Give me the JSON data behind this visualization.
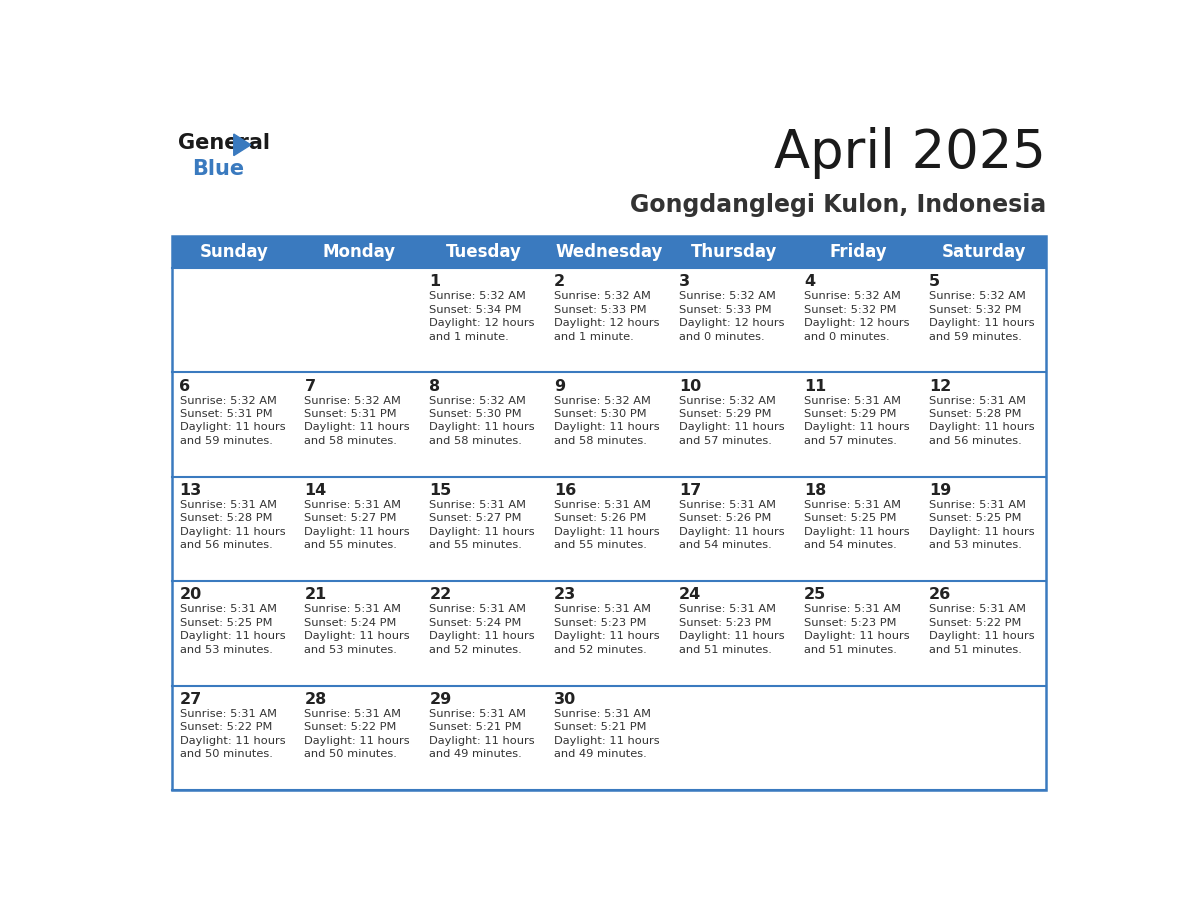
{
  "title": "April 2025",
  "subtitle": "Gongdanglegi Kulon, Indonesia",
  "header_bg_color": "#3a7abf",
  "header_text_color": "#ffffff",
  "day_names": [
    "Sunday",
    "Monday",
    "Tuesday",
    "Wednesday",
    "Thursday",
    "Friday",
    "Saturday"
  ],
  "bg_color": "#ffffff",
  "row_bg_white": "#ffffff",
  "row_bg_gray": "#f0f3f7",
  "row_line_color": "#3a7abf",
  "text_color": "#333333",
  "day_num_color": "#222222",
  "calendar": [
    [
      {
        "day": "",
        "sunrise": "",
        "sunset": "",
        "daylight": ""
      },
      {
        "day": "",
        "sunrise": "",
        "sunset": "",
        "daylight": ""
      },
      {
        "day": "1",
        "sunrise": "5:32 AM",
        "sunset": "5:34 PM",
        "daylight": "12 hours and 1 minute."
      },
      {
        "day": "2",
        "sunrise": "5:32 AM",
        "sunset": "5:33 PM",
        "daylight": "12 hours and 1 minute."
      },
      {
        "day": "3",
        "sunrise": "5:32 AM",
        "sunset": "5:33 PM",
        "daylight": "12 hours and 0 minutes."
      },
      {
        "day": "4",
        "sunrise": "5:32 AM",
        "sunset": "5:32 PM",
        "daylight": "12 hours and 0 minutes."
      },
      {
        "day": "5",
        "sunrise": "5:32 AM",
        "sunset": "5:32 PM",
        "daylight": "11 hours and 59 minutes."
      }
    ],
    [
      {
        "day": "6",
        "sunrise": "5:32 AM",
        "sunset": "5:31 PM",
        "daylight": "11 hours and 59 minutes."
      },
      {
        "day": "7",
        "sunrise": "5:32 AM",
        "sunset": "5:31 PM",
        "daylight": "11 hours and 58 minutes."
      },
      {
        "day": "8",
        "sunrise": "5:32 AM",
        "sunset": "5:30 PM",
        "daylight": "11 hours and 58 minutes."
      },
      {
        "day": "9",
        "sunrise": "5:32 AM",
        "sunset": "5:30 PM",
        "daylight": "11 hours and 58 minutes."
      },
      {
        "day": "10",
        "sunrise": "5:32 AM",
        "sunset": "5:29 PM",
        "daylight": "11 hours and 57 minutes."
      },
      {
        "day": "11",
        "sunrise": "5:31 AM",
        "sunset": "5:29 PM",
        "daylight": "11 hours and 57 minutes."
      },
      {
        "day": "12",
        "sunrise": "5:31 AM",
        "sunset": "5:28 PM",
        "daylight": "11 hours and 56 minutes."
      }
    ],
    [
      {
        "day": "13",
        "sunrise": "5:31 AM",
        "sunset": "5:28 PM",
        "daylight": "11 hours and 56 minutes."
      },
      {
        "day": "14",
        "sunrise": "5:31 AM",
        "sunset": "5:27 PM",
        "daylight": "11 hours and 55 minutes."
      },
      {
        "day": "15",
        "sunrise": "5:31 AM",
        "sunset": "5:27 PM",
        "daylight": "11 hours and 55 minutes."
      },
      {
        "day": "16",
        "sunrise": "5:31 AM",
        "sunset": "5:26 PM",
        "daylight": "11 hours and 55 minutes."
      },
      {
        "day": "17",
        "sunrise": "5:31 AM",
        "sunset": "5:26 PM",
        "daylight": "11 hours and 54 minutes."
      },
      {
        "day": "18",
        "sunrise": "5:31 AM",
        "sunset": "5:25 PM",
        "daylight": "11 hours and 54 minutes."
      },
      {
        "day": "19",
        "sunrise": "5:31 AM",
        "sunset": "5:25 PM",
        "daylight": "11 hours and 53 minutes."
      }
    ],
    [
      {
        "day": "20",
        "sunrise": "5:31 AM",
        "sunset": "5:25 PM",
        "daylight": "11 hours and 53 minutes."
      },
      {
        "day": "21",
        "sunrise": "5:31 AM",
        "sunset": "5:24 PM",
        "daylight": "11 hours and 53 minutes."
      },
      {
        "day": "22",
        "sunrise": "5:31 AM",
        "sunset": "5:24 PM",
        "daylight": "11 hours and 52 minutes."
      },
      {
        "day": "23",
        "sunrise": "5:31 AM",
        "sunset": "5:23 PM",
        "daylight": "11 hours and 52 minutes."
      },
      {
        "day": "24",
        "sunrise": "5:31 AM",
        "sunset": "5:23 PM",
        "daylight": "11 hours and 51 minutes."
      },
      {
        "day": "25",
        "sunrise": "5:31 AM",
        "sunset": "5:23 PM",
        "daylight": "11 hours and 51 minutes."
      },
      {
        "day": "26",
        "sunrise": "5:31 AM",
        "sunset": "5:22 PM",
        "daylight": "11 hours and 51 minutes."
      }
    ],
    [
      {
        "day": "27",
        "sunrise": "5:31 AM",
        "sunset": "5:22 PM",
        "daylight": "11 hours and 50 minutes."
      },
      {
        "day": "28",
        "sunrise": "5:31 AM",
        "sunset": "5:22 PM",
        "daylight": "11 hours and 50 minutes."
      },
      {
        "day": "29",
        "sunrise": "5:31 AM",
        "sunset": "5:21 PM",
        "daylight": "11 hours and 49 minutes."
      },
      {
        "day": "30",
        "sunrise": "5:31 AM",
        "sunset": "5:21 PM",
        "daylight": "11 hours and 49 minutes."
      },
      {
        "day": "",
        "sunrise": "",
        "sunset": "",
        "daylight": ""
      },
      {
        "day": "",
        "sunrise": "",
        "sunset": "",
        "daylight": ""
      },
      {
        "day": "",
        "sunrise": "",
        "sunset": "",
        "daylight": ""
      }
    ]
  ]
}
